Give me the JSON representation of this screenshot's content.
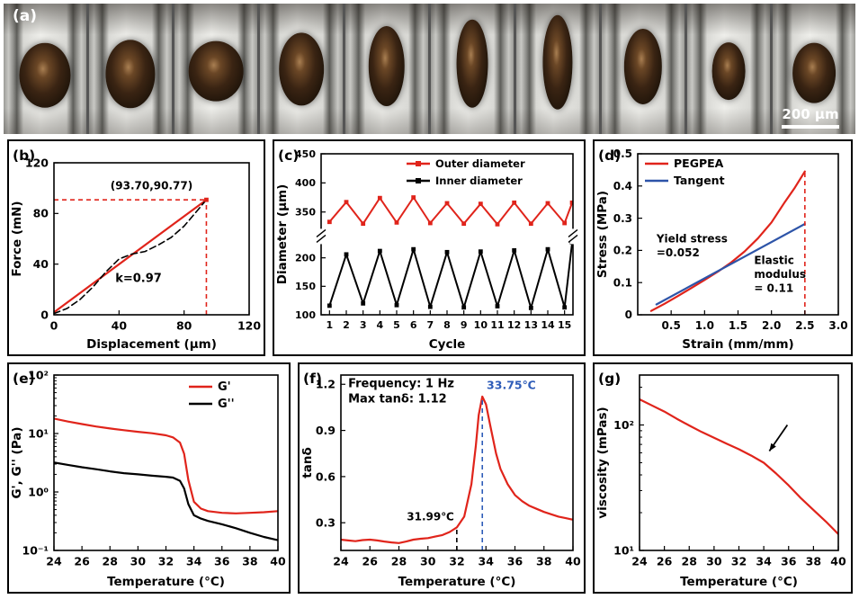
{
  "figure": {
    "panel_a": {
      "label": "(a)",
      "scale_bar": "200 μm",
      "frames": [
        {
          "w": 62,
          "h": 50,
          "y": 55
        },
        {
          "w": 60,
          "h": 52,
          "y": 54
        },
        {
          "w": 66,
          "h": 46,
          "y": 52
        },
        {
          "w": 54,
          "h": 56,
          "y": 50
        },
        {
          "w": 44,
          "h": 62,
          "y": 48
        },
        {
          "w": 38,
          "h": 68,
          "y": 46
        },
        {
          "w": 36,
          "h": 72,
          "y": 45
        },
        {
          "w": 46,
          "h": 58,
          "y": 48
        },
        {
          "w": 40,
          "h": 44,
          "y": 52
        },
        {
          "w": 52,
          "h": 46,
          "y": 53
        }
      ]
    }
  },
  "chart_data": [
    {
      "id": "b",
      "type": "line",
      "panel_label": "(b)",
      "xlabel": "Displacement (μm)",
      "ylabel": "Force (mN)",
      "xlim": [
        0,
        120
      ],
      "ylim": [
        0,
        120
      ],
      "xticks": [
        0,
        40,
        80,
        120
      ],
      "xtick_labels": [
        "0",
        "40",
        "80",
        "120"
      ],
      "yticks": [
        0,
        40,
        80,
        120
      ],
      "ytick_labels": [
        "0",
        "40",
        "80",
        "120"
      ],
      "series": [
        {
          "name": "linear fit",
          "color": "#e0241b",
          "width": 2.2,
          "x": [
            0,
            93.7
          ],
          "y": [
            2,
            90.77
          ]
        },
        {
          "name": "measured",
          "color": "#000000",
          "width": 1.6,
          "dash": "7 4",
          "x": [
            0,
            8,
            16,
            24,
            32,
            40,
            48,
            56,
            64,
            72,
            80,
            86,
            93.7
          ],
          "y": [
            1,
            5,
            12,
            22,
            34,
            44,
            48,
            50,
            55,
            61,
            70,
            79,
            90.77
          ]
        },
        {
          "name": "endpoint",
          "color": "#e0241b",
          "width": 0,
          "marker": "square",
          "x": [
            93.7
          ],
          "y": [
            90.77
          ]
        }
      ],
      "ref_lines": [
        {
          "dir": "h",
          "at": 90.77,
          "from": 0,
          "to": 93.7,
          "color": "#e0241b",
          "dash": "5 4"
        },
        {
          "dir": "v",
          "at": 93.7,
          "from": 0,
          "to": 90.77,
          "color": "#e0241b",
          "dash": "5 4"
        }
      ],
      "annotations": [
        {
          "lines": [
            "(93.70,90.77)"
          ],
          "x": 60,
          "y": 99,
          "size": 12,
          "anchor": "middle",
          "color": "#000000"
        },
        {
          "lines": [
            "k=0.97"
          ],
          "x": 52,
          "y": 26,
          "size": 13,
          "anchor": "middle",
          "color": "#000000"
        }
      ]
    },
    {
      "id": "c",
      "type": "line",
      "panel_label": "(c)",
      "xlabel": "Cycle",
      "ylabel": "Diameter (μm)",
      "xlim": [
        0.5,
        15.5
      ],
      "ylim": [
        100,
        450
      ],
      "ybreak": {
        "lower": [
          100,
          230
        ],
        "upper": [
          320,
          450
        ]
      },
      "xticks": [
        1,
        2,
        3,
        4,
        5,
        6,
        7,
        8,
        9,
        10,
        11,
        12,
        13,
        14,
        15
      ],
      "xtick_labels": [
        "1",
        "2",
        "3",
        "4",
        "5",
        "6",
        "7",
        "8",
        "9",
        "10",
        "11",
        "12",
        "13",
        "14",
        "15"
      ],
      "yticks": [
        100,
        150,
        200,
        350,
        400,
        450
      ],
      "ytick_labels": [
        "100",
        "150",
        "200",
        "350",
        "400",
        "450"
      ],
      "series": [
        {
          "name": "Outer diameter",
          "color": "#e0241b",
          "width": 2,
          "marker": "square",
          "x": [
            1,
            2,
            3,
            4,
            5,
            6,
            7,
            8,
            9,
            10,
            11,
            12,
            13,
            14,
            15,
            15.45
          ],
          "y": [
            333,
            367,
            330,
            374,
            332,
            375,
            331,
            365,
            330,
            364,
            329,
            366,
            330,
            365,
            331,
            366
          ]
        },
        {
          "name": "Inner diameter",
          "color": "#000000",
          "width": 2,
          "marker": "square",
          "x": [
            1,
            2,
            3,
            4,
            5,
            6,
            7,
            8,
            9,
            10,
            11,
            12,
            13,
            14,
            15,
            15.45
          ],
          "y": [
            116,
            206,
            120,
            212,
            117,
            215,
            114,
            210,
            113,
            211,
            115,
            213,
            112,
            215,
            113,
            227
          ]
        }
      ],
      "legend": [
        {
          "label": "Outer diameter",
          "color": "#e0241b",
          "marker": true
        },
        {
          "label": "Inner diameter",
          "color": "#000000",
          "marker": true
        }
      ]
    },
    {
      "id": "d",
      "type": "line",
      "panel_label": "(d)",
      "xlabel": "Strain (mm/mm)",
      "ylabel": "Stress (MPa)",
      "xlim": [
        0,
        3.0
      ],
      "ylim": [
        0,
        0.5
      ],
      "xticks": [
        0.5,
        1.0,
        1.5,
        2.0,
        2.5,
        3.0
      ],
      "xtick_labels": [
        "0.5",
        "1.0",
        "1.5",
        "2.0",
        "2.5",
        "3.0"
      ],
      "yticks": [
        0,
        0.1,
        0.2,
        0.3,
        0.4,
        0.5
      ],
      "ytick_labels": [
        "0",
        "0.1",
        "0.2",
        "0.3",
        "0.4",
        "0.5"
      ],
      "series": [
        {
          "name": "PEGPEA",
          "color": "#e0241b",
          "width": 2.2,
          "x": [
            0.2,
            0.4,
            0.6,
            0.8,
            1.0,
            1.2,
            1.4,
            1.6,
            1.8,
            2.0,
            2.2,
            2.35,
            2.5
          ],
          "y": [
            0.012,
            0.034,
            0.058,
            0.083,
            0.108,
            0.134,
            0.163,
            0.197,
            0.238,
            0.287,
            0.35,
            0.395,
            0.445
          ]
        },
        {
          "name": "Tangent",
          "color": "#2d54a8",
          "width": 2.2,
          "x": [
            0.28,
            2.5
          ],
          "y": [
            0.032,
            0.282
          ]
        }
      ],
      "ref_lines": [
        {
          "dir": "v",
          "at": 2.5,
          "from": 0,
          "to": 0.445,
          "color": "#e0241b",
          "dash": "5 4"
        }
      ],
      "annotations": [
        {
          "lines": [
            "Yield stress",
            "=0.052"
          ],
          "x": 0.28,
          "y": 0.225,
          "size": 12,
          "anchor": "start",
          "color": "#000000"
        },
        {
          "lines": [
            "Elastic",
            "modulus",
            "= 0.11"
          ],
          "x": 1.74,
          "y": 0.158,
          "size": 12,
          "anchor": "start",
          "color": "#000000"
        }
      ],
      "legend": [
        {
          "label": "PEGPEA",
          "color": "#e0241b"
        },
        {
          "label": "Tangent",
          "color": "#2d54a8"
        }
      ]
    },
    {
      "id": "e",
      "type": "line",
      "panel_label": "(e)",
      "xlabel": "Temperature (°C)",
      "ylabel": "G', G'' (Pa)",
      "xlim": [
        24,
        40
      ],
      "ylim": [
        0.1,
        100
      ],
      "yscale": "log",
      "xticks": [
        24,
        26,
        28,
        30,
        32,
        34,
        36,
        38,
        40
      ],
      "xtick_labels": [
        "24",
        "26",
        "28",
        "30",
        "32",
        "34",
        "36",
        "38",
        "40"
      ],
      "yticks": [
        0.1,
        1,
        10,
        100
      ],
      "ytick_labels": [
        "10⁻¹",
        "10⁰",
        "10¹",
        "10²"
      ],
      "series": [
        {
          "name": "G'",
          "color": "#e0241b",
          "width": 2.2,
          "x": [
            24,
            25,
            26,
            27,
            28,
            29,
            30,
            31,
            32,
            32.5,
            33,
            33.3,
            33.6,
            34,
            34.5,
            35,
            36,
            37,
            38,
            39,
            40
          ],
          "y": [
            18,
            16,
            14.5,
            13.2,
            12.2,
            11.4,
            10.7,
            10.1,
            9.3,
            8.6,
            7,
            4.5,
            1.6,
            0.68,
            0.52,
            0.47,
            0.44,
            0.43,
            0.44,
            0.45,
            0.47
          ]
        },
        {
          "name": "G''",
          "color": "#000000",
          "width": 2.2,
          "x": [
            24,
            25,
            26,
            27,
            28,
            29,
            30,
            31,
            32,
            32.5,
            33,
            33.3,
            33.6,
            34,
            34.5,
            35,
            36,
            37,
            38,
            39,
            40
          ],
          "y": [
            3.2,
            2.9,
            2.65,
            2.45,
            2.25,
            2.1,
            2.0,
            1.9,
            1.82,
            1.76,
            1.55,
            1.15,
            0.62,
            0.4,
            0.35,
            0.32,
            0.28,
            0.24,
            0.2,
            0.17,
            0.15
          ]
        }
      ],
      "legend": [
        {
          "label": "G'",
          "color": "#e0241b"
        },
        {
          "label": "G''",
          "color": "#000000"
        }
      ]
    },
    {
      "id": "f",
      "type": "line",
      "panel_label": "(f)",
      "xlabel": "Temperature (°C)",
      "ylabel": "tanδ",
      "xlim": [
        24,
        40
      ],
      "ylim": [
        0.12,
        1.26
      ],
      "xticks": [
        24,
        26,
        28,
        30,
        32,
        34,
        36,
        38,
        40
      ],
      "xtick_labels": [
        "24",
        "26",
        "28",
        "30",
        "32",
        "34",
        "36",
        "38",
        "40"
      ],
      "yticks": [
        0.3,
        0.6,
        0.9,
        1.2
      ],
      "ytick_labels": [
        "0.3",
        "0.6",
        "0.9",
        "1.2"
      ],
      "series": [
        {
          "name": "tanδ",
          "color": "#e0241b",
          "width": 2.2,
          "x": [
            24,
            24.5,
            25,
            25.5,
            26,
            26.5,
            27,
            27.5,
            28,
            28.5,
            29,
            29.5,
            30,
            30.5,
            31,
            31.5,
            32,
            32.5,
            33,
            33.3,
            33.5,
            33.75,
            34,
            34.3,
            34.7,
            35,
            35.5,
            36,
            36.5,
            37,
            37.5,
            38,
            38.5,
            39,
            39.5,
            40
          ],
          "y": [
            0.19,
            0.185,
            0.18,
            0.187,
            0.19,
            0.185,
            0.178,
            0.172,
            0.168,
            0.178,
            0.19,
            0.196,
            0.2,
            0.21,
            0.22,
            0.24,
            0.27,
            0.34,
            0.55,
            0.8,
            1.0,
            1.12,
            1.07,
            0.93,
            0.75,
            0.65,
            0.55,
            0.48,
            0.44,
            0.41,
            0.39,
            0.37,
            0.355,
            0.34,
            0.33,
            0.32
          ]
        }
      ],
      "ref_lines": [
        {
          "dir": "v",
          "at": 31.99,
          "from": 0.12,
          "to": 0.27,
          "color": "#000000",
          "dash": "5 4"
        },
        {
          "dir": "v",
          "at": 33.75,
          "from": 0.12,
          "to": 1.12,
          "color": "#2e5cb8",
          "dash": "5 4"
        }
      ],
      "annotations": [
        {
          "lines": [
            "Frequency: 1 Hz",
            "Max tanδ: 1.12"
          ],
          "x": 24.5,
          "y": 1.18,
          "size": 13,
          "anchor": "start",
          "color": "#000000"
        },
        {
          "lines": [
            "31.99℃"
          ],
          "x": 31.8,
          "y": 0.315,
          "size": 12,
          "anchor": "end",
          "color": "#000000"
        },
        {
          "lines": [
            "33.75℃"
          ],
          "x": 34.05,
          "y": 1.17,
          "size": 12.5,
          "anchor": "start",
          "color": "#2e5cb8"
        }
      ]
    },
    {
      "id": "g",
      "type": "line",
      "panel_label": "(g)",
      "xlabel": "Temperature (°C)",
      "ylabel": "viscosity (mPas)",
      "xlim": [
        24,
        40
      ],
      "ylim": [
        10,
        250
      ],
      "yscale": "log",
      "xticks": [
        24,
        26,
        28,
        30,
        32,
        34,
        36,
        38,
        40
      ],
      "xtick_labels": [
        "24",
        "26",
        "28",
        "30",
        "32",
        "34",
        "36",
        "38",
        "40"
      ],
      "yticks": [
        10,
        100
      ],
      "ytick_labels": [
        "10¹",
        "10²"
      ],
      "series": [
        {
          "name": "viscosity",
          "color": "#e0241b",
          "width": 2.2,
          "x": [
            24,
            25,
            26,
            27,
            28,
            29,
            30,
            31,
            32,
            33,
            34,
            35,
            36,
            37,
            38,
            39,
            40
          ],
          "y": [
            160,
            143,
            128,
            112,
            99,
            88,
            79,
            71,
            64,
            57,
            50,
            41,
            33,
            26,
            21,
            17,
            13.5
          ]
        }
      ],
      "annotations": [
        {
          "type": "arrow",
          "x1": 35.9,
          "y1": 100,
          "x2": 34.45,
          "y2": 62,
          "color": "#000000"
        }
      ]
    }
  ]
}
